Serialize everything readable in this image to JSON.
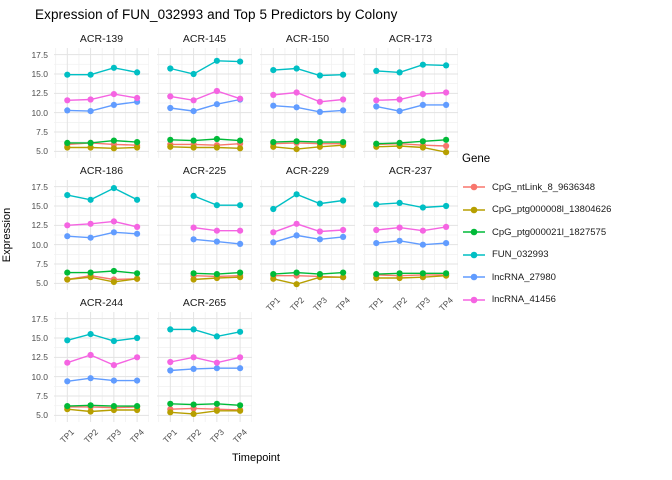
{
  "title": "Expression of FUN_032993 and Top 5 Predictors by Colony",
  "axes": {
    "x_label": "Timepoint",
    "y_label": "Expression",
    "y_tick_labels": [
      "17.5",
      "15.0",
      "12.5",
      "10.0",
      "7.5",
      "5.0"
    ],
    "x_categories": [
      "TP1",
      "TP2",
      "TP3",
      "TP4"
    ]
  },
  "legend": {
    "title": "Gene"
  },
  "chart_data": {
    "type": "line",
    "title": "Expression of FUN_032993 and Top 5 Predictors by Colony",
    "xlabel": "Timepoint",
    "ylabel": "Expression",
    "categories": [
      "TP1",
      "TP2",
      "TP3",
      "TP4"
    ],
    "ylim": [
      4.15,
      18.35
    ],
    "y_ticks": [
      5.0,
      7.5,
      10.0,
      12.5,
      15.0,
      17.5
    ],
    "y_minor_ticks": [
      6.25,
      8.75,
      11.25,
      13.75,
      16.25
    ],
    "grid": true,
    "legend_position": "right",
    "legend_title": "Gene",
    "genes": [
      {
        "name": "CpG_ntLink_8_9636348",
        "color": "#F8766D"
      },
      {
        "name": "CpG_ptg000008l_13804626",
        "color": "#B79F00"
      },
      {
        "name": "CpG_ptg000021l_1827575",
        "color": "#00BA38"
      },
      {
        "name": "FUN_032993",
        "color": "#00BFC4"
      },
      {
        "name": "lncRNA_27980",
        "color": "#619CFF"
      },
      {
        "name": "lncRNA_41456",
        "color": "#F564E2"
      }
    ],
    "facets": [
      {
        "name": "ACR-139",
        "show_x_labels": false,
        "values": [
          [
            5.9,
            6.1,
            5.9,
            5.8
          ],
          [
            5.5,
            5.5,
            5.4,
            5.5
          ],
          [
            6.1,
            6.1,
            6.4,
            6.2
          ],
          [
            14.9,
            14.9,
            15.8,
            15.2
          ],
          [
            10.3,
            10.2,
            11.0,
            11.4
          ],
          [
            11.6,
            11.7,
            12.4,
            11.9
          ]
        ]
      },
      {
        "name": "ACR-145",
        "show_x_labels": false,
        "values": [
          [
            5.9,
            5.9,
            5.8,
            6.0
          ],
          [
            5.6,
            5.5,
            5.5,
            5.4
          ],
          [
            6.5,
            6.4,
            6.6,
            6.4
          ],
          [
            15.7,
            15.0,
            16.7,
            16.6
          ],
          [
            10.6,
            10.2,
            11.1,
            11.7
          ],
          [
            12.1,
            11.6,
            12.8,
            11.8
          ]
        ]
      },
      {
        "name": "ACR-150",
        "show_x_labels": false,
        "values": [
          [
            6.0,
            6.1,
            6.0,
            6.0
          ],
          [
            5.6,
            5.3,
            5.6,
            5.8
          ],
          [
            6.2,
            6.3,
            6.2,
            6.2
          ],
          [
            15.5,
            15.7,
            14.8,
            14.9
          ],
          [
            10.9,
            10.7,
            10.1,
            10.3
          ],
          [
            12.3,
            12.6,
            11.4,
            11.7
          ]
        ]
      },
      {
        "name": "ACR-173",
        "show_x_labels": false,
        "values": [
          [
            5.9,
            6.0,
            5.8,
            5.7
          ],
          [
            5.6,
            5.7,
            5.5,
            4.9
          ],
          [
            6.0,
            6.1,
            6.3,
            6.5
          ],
          [
            15.4,
            15.2,
            16.2,
            16.1
          ],
          [
            10.8,
            10.2,
            11.0,
            11.0
          ],
          [
            11.6,
            11.7,
            12.4,
            12.6
          ]
        ]
      },
      {
        "name": "ACR-186",
        "show_x_labels": false,
        "values": [
          [
            5.5,
            6.0,
            5.5,
            5.6
          ],
          [
            5.5,
            5.8,
            5.2,
            5.6
          ],
          [
            6.4,
            6.4,
            6.6,
            6.3
          ],
          [
            16.4,
            15.8,
            17.3,
            15.8
          ],
          [
            11.1,
            10.9,
            11.6,
            11.4
          ],
          [
            12.5,
            12.7,
            13.0,
            12.3
          ]
        ]
      },
      {
        "name": "ACR-225",
        "show_x_labels": false,
        "values": [
          [
            null,
            6.0,
            5.9,
            6.0
          ],
          [
            null,
            5.5,
            5.7,
            5.8
          ],
          [
            null,
            6.3,
            6.2,
            6.4
          ],
          [
            null,
            16.3,
            15.1,
            15.1
          ],
          [
            null,
            10.7,
            10.4,
            10.1
          ],
          [
            null,
            12.2,
            11.8,
            11.8
          ]
        ]
      },
      {
        "name": "ACR-229",
        "show_x_labels": true,
        "values": [
          [
            6.0,
            6.0,
            5.9,
            5.8
          ],
          [
            5.6,
            4.9,
            5.8,
            5.8
          ],
          [
            6.2,
            6.4,
            6.2,
            6.4
          ],
          [
            14.6,
            16.5,
            15.3,
            15.7
          ],
          [
            10.3,
            11.2,
            10.7,
            11.0
          ],
          [
            11.6,
            12.7,
            11.7,
            11.9
          ]
        ]
      },
      {
        "name": "ACR-237",
        "show_x_labels": true,
        "values": [
          [
            6.1,
            6.0,
            6.1,
            6.1
          ],
          [
            5.7,
            5.7,
            5.8,
            6.0
          ],
          [
            6.2,
            6.3,
            6.3,
            6.3
          ],
          [
            15.2,
            15.4,
            14.8,
            15.0
          ],
          [
            10.2,
            10.5,
            10.0,
            10.2
          ],
          [
            11.9,
            12.2,
            11.8,
            12.3
          ]
        ]
      },
      {
        "name": "ACR-244",
        "show_x_labels": true,
        "values": [
          [
            6.1,
            6.1,
            6.0,
            6.1
          ],
          [
            5.8,
            5.5,
            5.7,
            5.7
          ],
          [
            6.2,
            6.3,
            6.2,
            6.2
          ],
          [
            14.7,
            15.5,
            14.6,
            15.0
          ],
          [
            9.4,
            9.8,
            9.5,
            9.5
          ],
          [
            11.8,
            12.8,
            11.5,
            12.5
          ]
        ]
      },
      {
        "name": "ACR-265",
        "show_x_labels": true,
        "values": [
          [
            5.8,
            5.9,
            5.8,
            5.7
          ],
          [
            5.4,
            5.2,
            5.6,
            5.6
          ],
          [
            6.5,
            6.4,
            6.5,
            6.3
          ],
          [
            16.1,
            16.1,
            15.2,
            15.8
          ],
          [
            10.8,
            11.0,
            11.1,
            11.1
          ],
          [
            11.9,
            12.5,
            11.8,
            12.5
          ]
        ]
      }
    ],
    "grid_colors": {
      "major": "#e3e3e3",
      "minor": "#f1f1f1"
    }
  }
}
